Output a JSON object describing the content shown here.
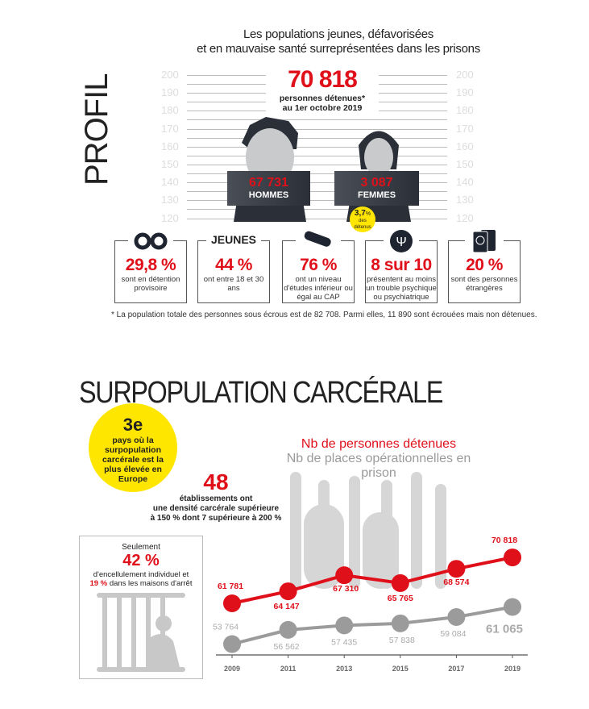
{
  "profil": {
    "section_title": "PROFIL",
    "headline": [
      "Les populations jeunes, défavorisées",
      "et en mauvaise santé surreprésentées dans les prisons"
    ],
    "ruler_marks": [
      "200",
      "190",
      "180",
      "170",
      "160",
      "150",
      "140",
      "130",
      "120"
    ],
    "total": "70 818",
    "total_caption_1": "personnes détenues*",
    "total_caption_2": "au 1er octobre 2019",
    "men": {
      "value": "67 731",
      "label": "HOMMES"
    },
    "women": {
      "value": "3 087",
      "label": "FEMMES",
      "badge_pct": "3,7",
      "badge_unit": "%",
      "badge_text": "des détenus"
    },
    "stats": [
      {
        "icon": "handcuffs-icon",
        "heading": "",
        "value": "29,8 %",
        "text": "sont en détention provisoire"
      },
      {
        "icon": "",
        "heading": "JEUNES",
        "value": "44 %",
        "text": "ont entre 18 et 30 ans"
      },
      {
        "icon": "diploma-icon",
        "heading": "",
        "value": "76 %",
        "text": "ont un niveau d'études inférieur ou égal au CAP"
      },
      {
        "icon": "psi-icon",
        "heading": "",
        "value": "8 sur 10",
        "text": "présentent au moins un trouble psychique ou psychiatrique"
      },
      {
        "icon": "passport-icon",
        "heading": "",
        "value": "20 %",
        "text": "sont des personnes étrangères"
      }
    ],
    "footnote": "* La population totale des personnes sous écrous est de 82 708. Parmi elles, 11 890 sont écrouées mais non détenues."
  },
  "surpop": {
    "section_title": "SURPOPULATION CARCÉRALE",
    "rank": {
      "value": "3e",
      "text": "pays où la surpopulation carcérale est la plus élevée en Europe"
    },
    "establishments": {
      "value": "48",
      "text": [
        "établissements ont",
        "une densité carcérale supérieure",
        "à 150 % dont 7 supérieure à 200 %"
      ]
    },
    "cell": {
      "intro": "Seulement",
      "value": "42 %",
      "text1": "d'encellulement individuel et",
      "value2": "19 %",
      "text2": "dans les maisons d'arrêt"
    }
  },
  "colors": {
    "red": "#e0101b",
    "gray": "#9b9b9b",
    "yellow": "#ffe600"
  },
  "chart_data": {
    "type": "line",
    "x": [
      "2009",
      "2011",
      "2013",
      "2015",
      "2017",
      "2019"
    ],
    "series": [
      {
        "name": "Nb de personnes détenues",
        "color": "#e0101b",
        "values": [
          61781,
          64147,
          67310,
          65765,
          68574,
          70818
        ],
        "labels": [
          "61 781",
          "64 147",
          "67 310",
          "65 765",
          "68 574",
          "70 818"
        ]
      },
      {
        "name": "Nb de places opérationnelles en prison",
        "color": "#9b9b9b",
        "values": [
          53764,
          56562,
          57435,
          57838,
          59084,
          61065
        ],
        "labels": [
          "53 764",
          "56 562",
          "57 435",
          "57 838",
          "59 084",
          "61 065"
        ]
      }
    ],
    "legend": "top"
  }
}
